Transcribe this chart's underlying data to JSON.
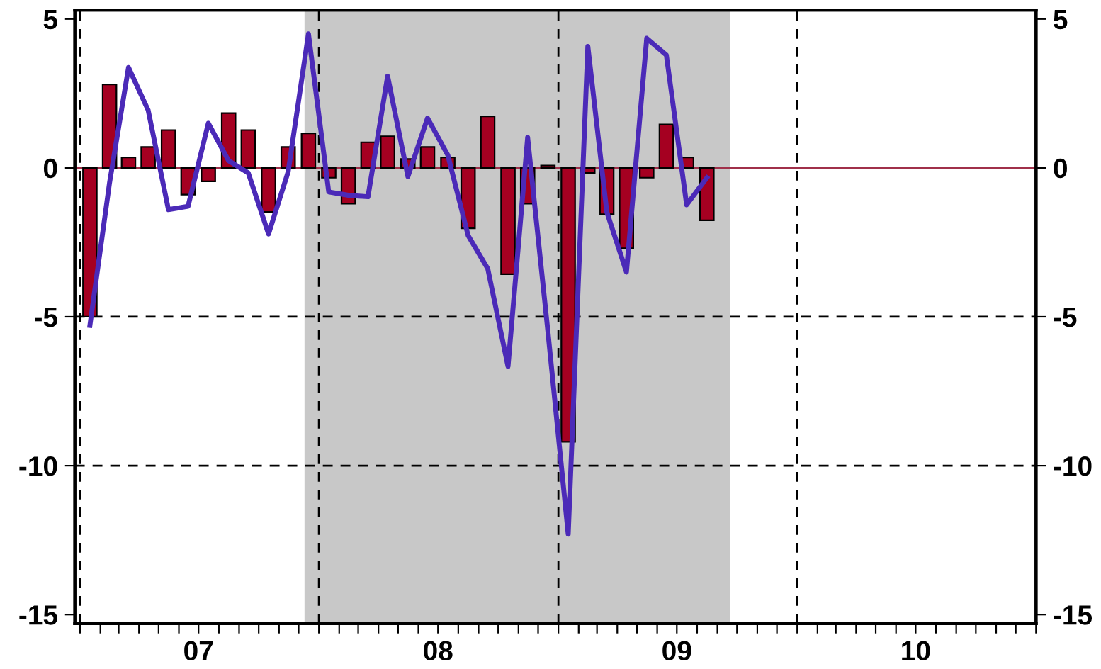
{
  "chart_data": {
    "type": "bar",
    "x": [
      "2007-01-16",
      "2007-02-15",
      "2007-03-16",
      "2007-04-15",
      "2007-05-16",
      "2007-06-15",
      "2007-07-16",
      "2007-08-16",
      "2007-09-15",
      "2007-10-16",
      "2007-11-15",
      "2007-12-16",
      "2008-01-16",
      "2008-02-15",
      "2008-03-16",
      "2008-04-15",
      "2008-05-16",
      "2008-06-15",
      "2008-07-16",
      "2008-08-16",
      "2008-09-15",
      "2008-10-16",
      "2008-11-15",
      "2008-12-16",
      "2009-01-16",
      "2009-02-15",
      "2009-03-16",
      "2009-04-15",
      "2009-05-16",
      "2009-06-15",
      "2009-07-16",
      "2009-08-16"
    ],
    "series": [
      {
        "color": "#a50021",
        "values": [
          -5.0,
          2.8,
          0.35,
          0.7,
          1.27,
          -0.9,
          -0.45,
          1.84,
          1.27,
          -1.48,
          0.7,
          1.16,
          -0.33,
          -1.2,
          0.86,
          1.06,
          0.3,
          0.7,
          0.35,
          -2.03,
          1.73,
          -3.57,
          -1.2,
          0.08,
          -9.2,
          -0.17,
          -1.56,
          -2.7,
          -0.33,
          1.46,
          0.35,
          -1.76
        ]
      },
      {
        "type": "line",
        "color": "#4b2ab8",
        "values": [
          -5.29,
          -0.5,
          3.37,
          1.94,
          -1.4,
          -1.29,
          1.5,
          0.24,
          -0.17,
          -2.22,
          -0.13,
          4.5,
          -0.81,
          -0.92,
          -0.97,
          3.08,
          -0.29,
          1.67,
          0.43,
          -2.27,
          -3.38,
          -6.67,
          1.02,
          -5.5,
          -12.3,
          4.08,
          -1.48,
          -3.5,
          4.35,
          3.79,
          -1.24,
          -0.33
        ]
      }
    ],
    "xlim": [
      "2006-12-24",
      "2011-01-01"
    ],
    "xticks": [
      {
        "value": "2007-01-01",
        "label": null
      },
      {
        "value": "2007-02-01",
        "label": null
      },
      {
        "value": "2007-03-01",
        "label": null
      },
      {
        "value": "2007-04-01",
        "label": null
      },
      {
        "value": "2007-05-01",
        "label": null
      },
      {
        "value": "2007-06-01",
        "label": null
      },
      {
        "value": "2007-07-01",
        "label": "07"
      },
      {
        "value": "2007-08-01",
        "label": null
      },
      {
        "value": "2007-09-01",
        "label": null
      },
      {
        "value": "2007-10-01",
        "label": null
      },
      {
        "value": "2007-11-01",
        "label": null
      },
      {
        "value": "2007-12-01",
        "label": null
      },
      {
        "value": "2008-01-01",
        "label": null
      },
      {
        "value": "2008-02-01",
        "label": null
      },
      {
        "value": "2008-03-01",
        "label": null
      },
      {
        "value": "2008-04-01",
        "label": null
      },
      {
        "value": "2008-05-01",
        "label": null
      },
      {
        "value": "2008-06-01",
        "label": null
      },
      {
        "value": "2008-07-01",
        "label": "08"
      },
      {
        "value": "2008-08-01",
        "label": null
      },
      {
        "value": "2008-09-01",
        "label": null
      },
      {
        "value": "2008-10-01",
        "label": null
      },
      {
        "value": "2008-11-01",
        "label": null
      },
      {
        "value": "2008-12-01",
        "label": null
      },
      {
        "value": "2009-01-01",
        "label": null
      },
      {
        "value": "2009-02-01",
        "label": null
      },
      {
        "value": "2009-03-01",
        "label": null
      },
      {
        "value": "2009-04-01",
        "label": null
      },
      {
        "value": "2009-05-01",
        "label": null
      },
      {
        "value": "2009-06-01",
        "label": null
      },
      {
        "value": "2009-07-01",
        "label": "09"
      },
      {
        "value": "2009-08-01",
        "label": null
      },
      {
        "value": "2009-09-01",
        "label": null
      },
      {
        "value": "2009-10-01",
        "label": null
      },
      {
        "value": "2009-11-01",
        "label": null
      },
      {
        "value": "2009-12-01",
        "label": null
      },
      {
        "value": "2010-01-01",
        "label": null
      },
      {
        "value": "2010-02-01",
        "label": null
      },
      {
        "value": "2010-03-01",
        "label": null
      },
      {
        "value": "2010-04-01",
        "label": null
      },
      {
        "value": "2010-05-01",
        "label": null
      },
      {
        "value": "2010-06-01",
        "label": null
      },
      {
        "value": "2010-07-01",
        "label": "10"
      },
      {
        "value": "2010-08-01",
        "label": null
      },
      {
        "value": "2010-09-01",
        "label": null
      },
      {
        "value": "2010-10-01",
        "label": null
      },
      {
        "value": "2010-11-01",
        "label": null
      },
      {
        "value": "2010-12-01",
        "label": null
      },
      {
        "value": "2011-01-01",
        "label": null
      }
    ],
    "ylim": [
      -15.3,
      5.3
    ],
    "yticks": [
      5,
      0,
      -5,
      -10,
      -15
    ],
    "y2lim": [
      -15.3,
      5.3
    ],
    "y2ticks": [
      5,
      0,
      -5,
      -10,
      -15
    ],
    "bands": [
      {
        "axis": "x",
        "from": "2007-12-10",
        "to": "2009-09-20",
        "color": "#c8c8c8"
      }
    ],
    "ref_lines": [
      {
        "axis": "y",
        "value": 0,
        "color": "#a0304a",
        "line_style": "solid"
      },
      {
        "axis": "y",
        "value": -5,
        "color": "#000000",
        "line_style": "dashed"
      },
      {
        "axis": "y",
        "value": -10,
        "color": "#000000",
        "line_style": "dashed"
      },
      {
        "axis": "x",
        "value": "2007-01-01",
        "color": "#000000",
        "line_style": "dashed"
      },
      {
        "axis": "x",
        "value": "2008-01-01",
        "color": "#000000",
        "line_style": "dashed"
      },
      {
        "axis": "x",
        "value": "2009-01-01",
        "color": "#000000",
        "line_style": "dashed"
      },
      {
        "axis": "x",
        "value": "2010-01-01",
        "color": "#000000",
        "line_style": "dashed"
      }
    ],
    "grid": false,
    "legend": false
  }
}
